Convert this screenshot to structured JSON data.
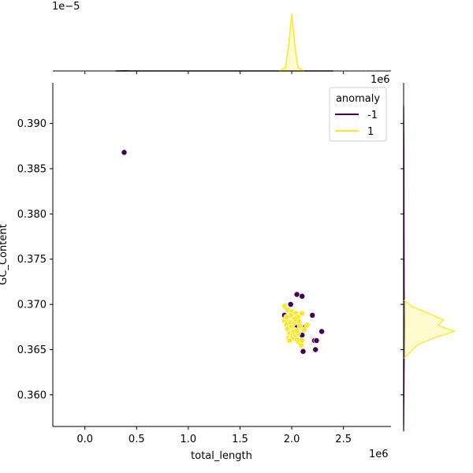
{
  "chart_data": {
    "type": "scatter",
    "kind": "jointplot",
    "xlabel": "total_length",
    "ylabel": "GC_Content",
    "x_offset_text": "1e6",
    "top_marginal_offset_text": "1e−5",
    "right_marginal_offset_text": "1e6",
    "xlim": [
      -0.31,
      2.96
    ],
    "ylim": [
      0.3565,
      0.3945
    ],
    "x_ticks": [
      0.0,
      0.5,
      1.0,
      1.5,
      2.0,
      2.5
    ],
    "x_tick_labels": [
      "0.0",
      "0.5",
      "1.0",
      "1.5",
      "2.0",
      "2.5"
    ],
    "y_ticks": [
      0.36,
      0.365,
      0.37,
      0.375,
      0.38,
      0.385,
      0.39
    ],
    "y_tick_labels": [
      "0.360",
      "0.365",
      "0.370",
      "0.375",
      "0.380",
      "0.385",
      "0.390"
    ],
    "grid": false,
    "legend": {
      "title": "anomaly",
      "placement": "top-right",
      "entries": [
        {
          "label": "-1",
          "color": "#440154"
        },
        {
          "label": "1",
          "color": "#fde725"
        }
      ]
    },
    "series": [
      {
        "name": "-1",
        "color": "#440154",
        "points": [
          [
            0.38,
            0.3868
          ],
          [
            1.99,
            0.37
          ],
          [
            2.05,
            0.3711
          ],
          [
            2.1,
            0.3709
          ],
          [
            1.93,
            0.3688
          ],
          [
            2.2,
            0.3688
          ],
          [
            2.05,
            0.3675
          ],
          [
            2.11,
            0.3674
          ],
          [
            2.29,
            0.367
          ],
          [
            2.1,
            0.3666
          ],
          [
            2.22,
            0.366
          ],
          [
            2.24,
            0.366
          ],
          [
            2.23,
            0.365
          ],
          [
            2.11,
            0.3648
          ],
          [
            2.0,
            0.369
          ]
        ]
      },
      {
        "name": "1",
        "color": "#fde725",
        "points": [
          [
            1.93,
            0.3698
          ],
          [
            1.96,
            0.3694
          ],
          [
            2.0,
            0.3692
          ],
          [
            2.04,
            0.369
          ],
          [
            2.1,
            0.369
          ],
          [
            1.93,
            0.3682
          ],
          [
            1.97,
            0.3684
          ],
          [
            2.01,
            0.3686
          ],
          [
            2.06,
            0.3686
          ],
          [
            1.95,
            0.3678
          ],
          [
            1.99,
            0.368
          ],
          [
            2.03,
            0.368
          ],
          [
            2.07,
            0.3681
          ],
          [
            2.15,
            0.3677
          ],
          [
            1.96,
            0.3673
          ],
          [
            2.0,
            0.3675
          ],
          [
            2.02,
            0.3672
          ],
          [
            2.08,
            0.3676
          ],
          [
            1.98,
            0.3668
          ],
          [
            2.01,
            0.3667
          ],
          [
            2.04,
            0.3666
          ],
          [
            1.97,
            0.3663
          ],
          [
            2.0,
            0.3662
          ],
          [
            2.05,
            0.3661
          ],
          [
            1.98,
            0.366
          ],
          [
            2.07,
            0.3658
          ],
          [
            2.09,
            0.3655
          ],
          [
            2.02,
            0.367
          ],
          [
            2.06,
            0.3668
          ],
          [
            1.99,
            0.3688
          ],
          [
            2.03,
            0.3684
          ],
          [
            1.95,
            0.3686
          ],
          [
            2.12,
            0.3672
          ],
          [
            2.05,
            0.3671
          ],
          [
            2.1,
            0.366
          ]
        ]
      }
    ],
    "top_marginal": {
      "type": "kde",
      "series": [
        {
          "name": "-1",
          "color": "#440154",
          "x": [
            0.3,
            0.38,
            0.46,
            1.8,
            2.0,
            2.2,
            2.4
          ],
          "density": [
            0.0,
            0.003,
            0.0,
            0.0,
            0.0004,
            0.0,
            0.0
          ]
        },
        {
          "name": "1",
          "color": "#fde725",
          "x": [
            1.88,
            1.94,
            1.97,
            2.0,
            2.03,
            2.06,
            2.12
          ],
          "density": [
            0.0,
            0.06,
            0.45,
            1.0,
            0.45,
            0.06,
            0.0
          ]
        }
      ]
    },
    "right_marginal": {
      "type": "kde",
      "series": [
        {
          "name": "-1",
          "color": "#440154",
          "y": [
            0.356,
            0.364,
            0.368,
            0.372,
            0.387,
            0.392
          ],
          "density": [
            0.0,
            0.01,
            0.015,
            0.01,
            0.005,
            0.0
          ]
        },
        {
          "name": "1",
          "color": "#fde725",
          "y": [
            0.364,
            0.3655,
            0.3663,
            0.367,
            0.3677,
            0.3683,
            0.369,
            0.3698,
            0.3705
          ],
          "density": [
            0.0,
            0.25,
            0.55,
            0.92,
            0.62,
            0.72,
            0.45,
            0.15,
            0.0
          ]
        }
      ]
    }
  }
}
